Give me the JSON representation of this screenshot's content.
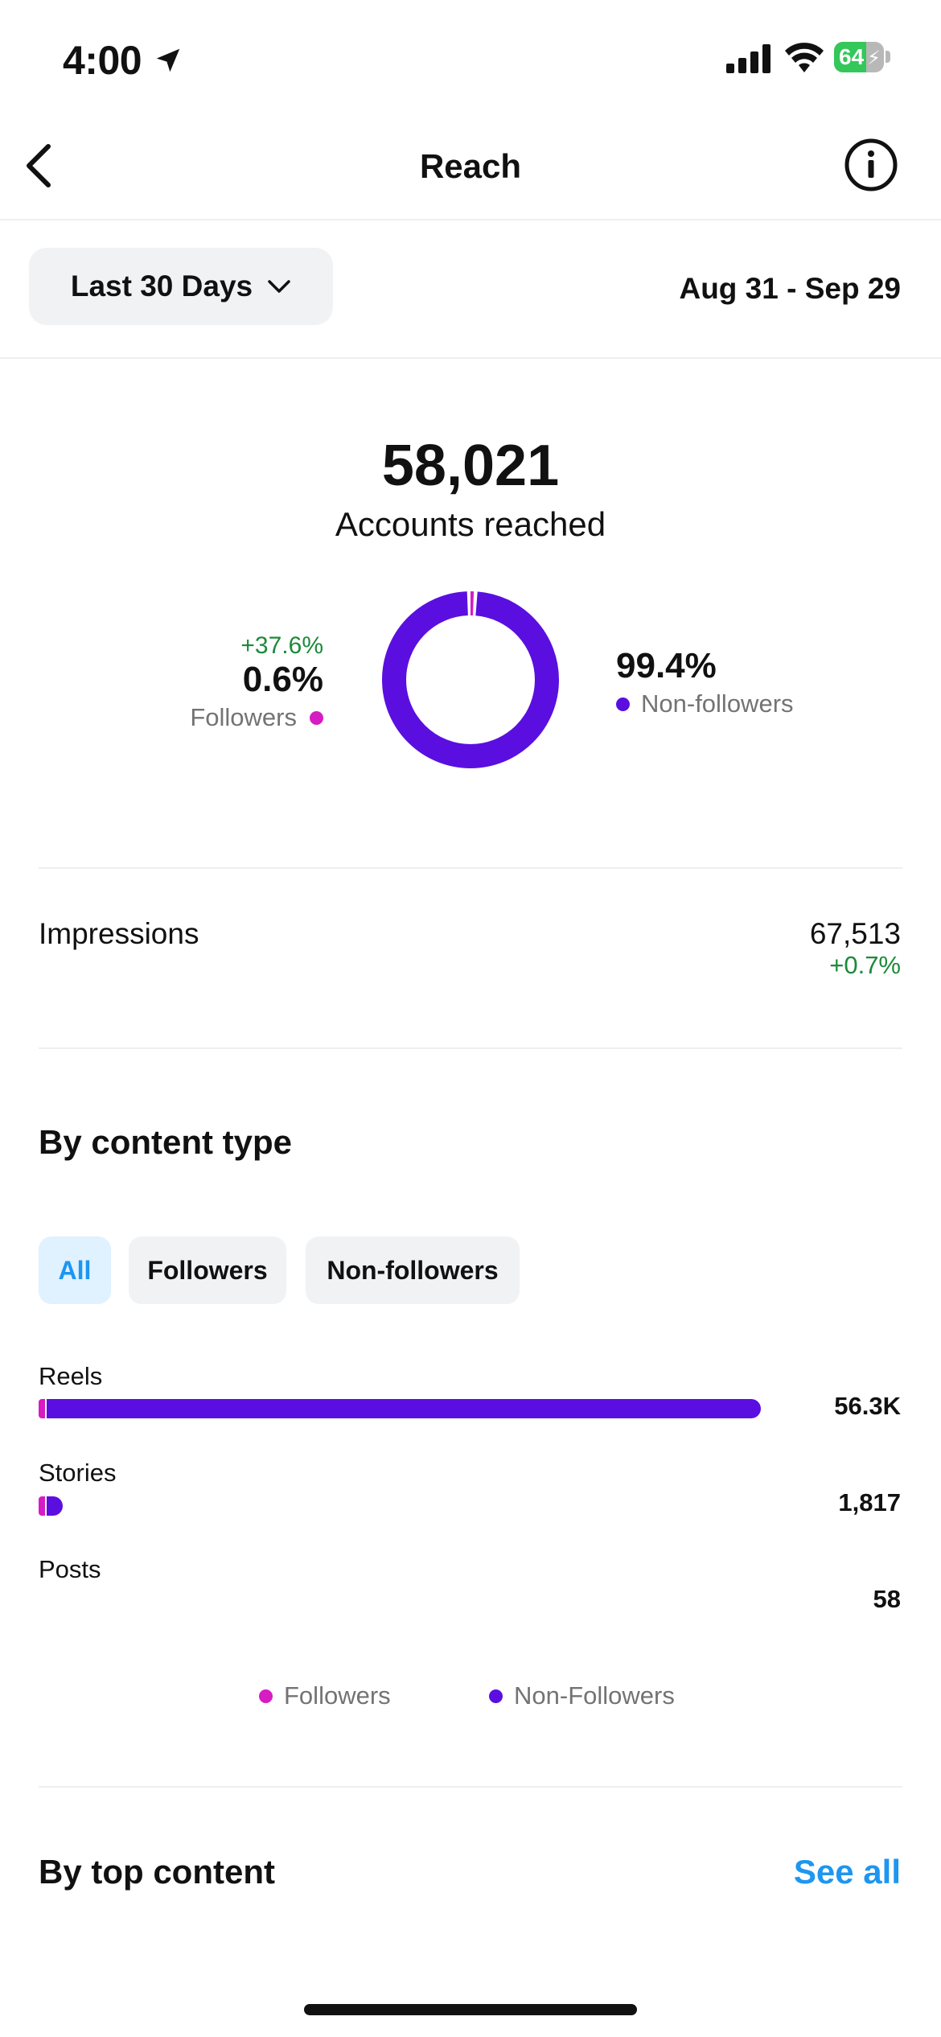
{
  "status_bar": {
    "time": "4:00",
    "battery": "64"
  },
  "nav": {
    "title": "Reach"
  },
  "filter": {
    "range_label": "Last 30 Days",
    "date_range": "Aug 31 - Sep 29"
  },
  "summary": {
    "total": "58,021",
    "total_label": "Accounts reached",
    "followers": {
      "change": "+37.6%",
      "pct": "0.6%",
      "label": "Followers",
      "fraction": 0.006
    },
    "non_followers": {
      "pct": "99.4%",
      "label": "Non-followers",
      "fraction": 0.994
    }
  },
  "impressions": {
    "label": "Impressions",
    "value": "67,513",
    "change": "+0.7%"
  },
  "by_content_type": {
    "title": "By content type",
    "tabs": [
      "All",
      "Followers",
      "Non-followers"
    ],
    "active_tab": "All",
    "legend": {
      "followers": "Followers",
      "non_followers": "Non-Followers"
    }
  },
  "chart_data": {
    "type": "bar",
    "orientation": "horizontal",
    "stacked": true,
    "categories": [
      "Reels",
      "Stories",
      "Posts"
    ],
    "value_labels": [
      "56.3K",
      "1,817",
      "58"
    ],
    "values": [
      56300,
      1817,
      58
    ],
    "series": [
      {
        "name": "Followers",
        "values": [
          340,
          110,
          0
        ]
      },
      {
        "name": "Non-Followers",
        "values": [
          55960,
          1707,
          58
        ]
      }
    ]
  },
  "colors": {
    "followers": "#d61cc3",
    "non_followers": "#5a0fe0",
    "accent": "#1d96f0",
    "positive": "#1d8a3a"
  },
  "top_content": {
    "title": "By top content",
    "see_all": "See all"
  }
}
